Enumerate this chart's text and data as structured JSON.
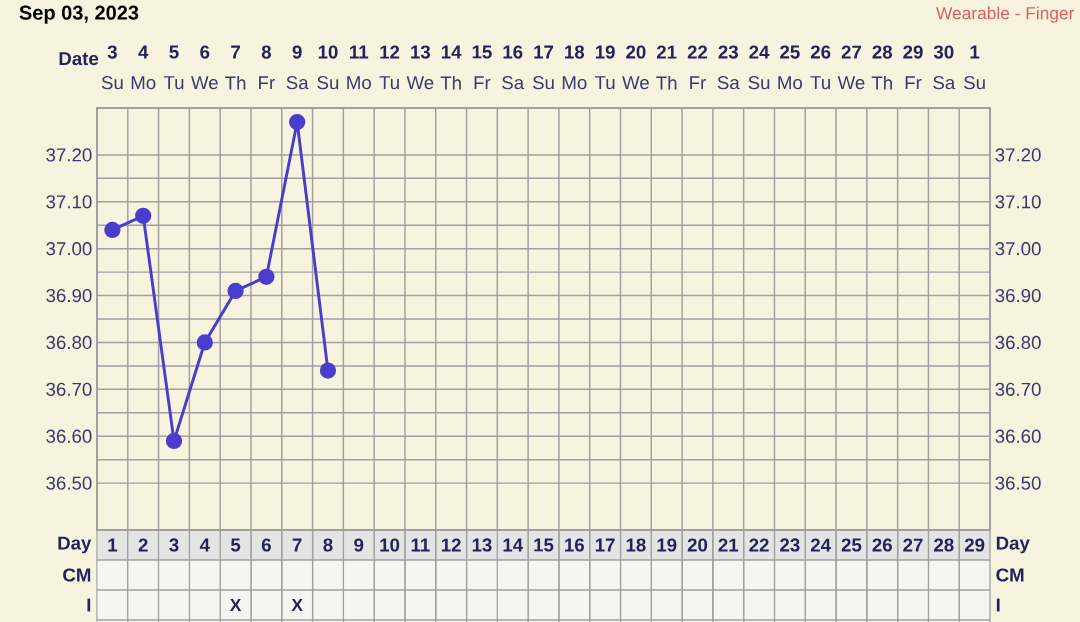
{
  "chart_data": {
    "type": "line",
    "title": "Sep 03, 2023",
    "subtitle": "Wearable - Finger",
    "xlabel": "Day",
    "x2label": "Date",
    "annotations": [
      "CM",
      "I",
      "X",
      "X",
      "Su",
      "Mo",
      "Tu",
      "We",
      "Th",
      "Fr",
      "Sa",
      "Su",
      "Mo",
      "Tu",
      "We",
      "Th",
      "Fr",
      "Sa",
      "Su",
      "Mo",
      "Tu",
      "We",
      "Th",
      "Fr",
      "Sa",
      "Su",
      "Mo",
      "Tu",
      "We",
      "Th",
      "Fr",
      "Sa",
      "Su"
    ],
    "x": [
      1,
      2,
      3,
      4,
      5,
      6,
      7,
      8
    ],
    "values": [
      37.04,
      37.07,
      36.59,
      36.8,
      36.91,
      36.94,
      37.27,
      36.74
    ],
    "color": "#4a3ccc",
    "marker": "circle",
    "grid": true,
    "xlim": [
      0.5,
      29.5
    ],
    "xticks": [
      1,
      2,
      3,
      4,
      5,
      6,
      7,
      8,
      9,
      10,
      11,
      12,
      13,
      14,
      15,
      16,
      17,
      18,
      19,
      20,
      21,
      22,
      23,
      24,
      25,
      26,
      27,
      28,
      29
    ],
    "x2lim": [
      "2023-09-02T12:00",
      "2023-10-01T12:00"
    ],
    "x2ticks": [
      {
        "value": "2023-09-03",
        "label": "3"
      },
      {
        "value": "2023-09-04",
        "label": "4"
      },
      {
        "value": "2023-09-05",
        "label": "5"
      },
      {
        "value": "2023-09-06",
        "label": "6"
      },
      {
        "value": "2023-09-07",
        "label": "7"
      },
      {
        "value": "2023-09-08",
        "label": "8"
      },
      {
        "value": "2023-09-09",
        "label": "9"
      },
      {
        "value": "2023-09-10",
        "label": "10"
      },
      {
        "value": "2023-09-11",
        "label": "11"
      },
      {
        "value": "2023-09-12",
        "label": "12"
      },
      {
        "value": "2023-09-13",
        "label": "13"
      },
      {
        "value": "2023-09-14",
        "label": "14"
      },
      {
        "value": "2023-09-15",
        "label": "15"
      },
      {
        "value": "2023-09-16",
        "label": "16"
      },
      {
        "value": "2023-09-17",
        "label": "17"
      },
      {
        "value": "2023-09-18",
        "label": "18"
      },
      {
        "value": "2023-09-19",
        "label": "19"
      },
      {
        "value": "2023-09-20",
        "label": "20"
      },
      {
        "value": "2023-09-21",
        "label": "21"
      },
      {
        "value": "2023-09-22",
        "label": "22"
      },
      {
        "value": "2023-09-23",
        "label": "23"
      },
      {
        "value": "2023-09-24",
        "label": "24"
      },
      {
        "value": "2023-09-25",
        "label": "25"
      },
      {
        "value": "2023-09-26",
        "label": "26"
      },
      {
        "value": "2023-09-27",
        "label": "27"
      },
      {
        "value": "2023-09-28",
        "label": "28"
      },
      {
        "value": "2023-09-29",
        "label": "29"
      },
      {
        "value": "2023-09-30",
        "label": "30"
      },
      {
        "value": "2023-10-01",
        "label": "1"
      }
    ],
    "ylim": [
      36.4,
      37.3
    ],
    "yticks": [
      {
        "value": 36.5,
        "label": "36.50"
      },
      {
        "value": 36.6,
        "label": "36.60"
      },
      {
        "value": 36.7,
        "label": "36.70"
      },
      {
        "value": 36.8,
        "label": "36.80"
      },
      {
        "value": 36.9,
        "label": "36.90"
      },
      {
        "value": 37.0,
        "label": "37.00"
      },
      {
        "value": 37.1,
        "label": "37.10"
      },
      {
        "value": 37.2,
        "label": "37.20"
      }
    ],
    "y2lim": [
      36.4,
      37.3
    ],
    "y2ticks": [
      {
        "value": 36.5,
        "label": "36.50"
      },
      {
        "value": 36.6,
        "label": "36.60"
      },
      {
        "value": 36.7,
        "label": "36.70"
      },
      {
        "value": 36.8,
        "label": "36.80"
      },
      {
        "value": 36.9,
        "label": "36.90"
      },
      {
        "value": 37.0,
        "label": "37.00"
      },
      {
        "value": 37.1,
        "label": "37.10"
      },
      {
        "value": 37.2,
        "label": "37.20"
      }
    ]
  }
}
